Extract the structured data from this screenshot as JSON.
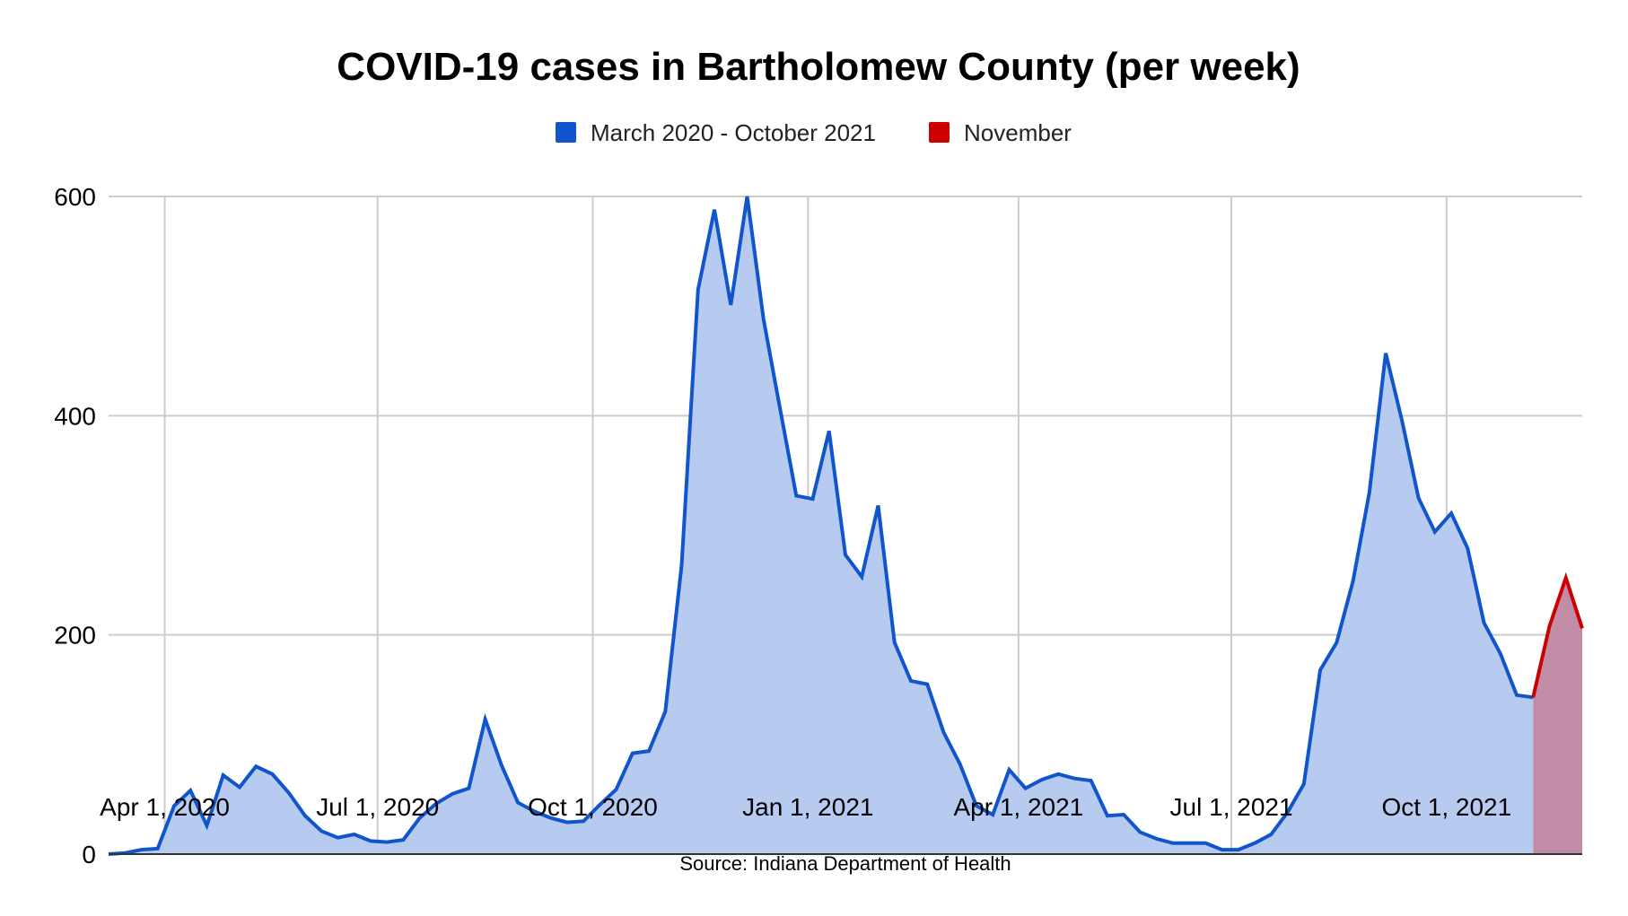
{
  "chart_data": {
    "type": "area",
    "title": "COVID-19 cases in Bartholomew County (per week)",
    "source": "Source: Indiana Department of Health",
    "xlabel": "",
    "ylabel": "",
    "ylim": [
      0,
      600
    ],
    "yticks": [
      "0",
      "200",
      "400",
      "600"
    ],
    "xlim": [
      "2020-03-08",
      "2021-11-28"
    ],
    "xticks": [
      {
        "date": "2020-04-01",
        "label": "Apr 1, 2020"
      },
      {
        "date": "2020-07-01",
        "label": "Jul 1, 2020"
      },
      {
        "date": "2020-10-01",
        "label": "Oct 1, 2020"
      },
      {
        "date": "2021-01-01",
        "label": "Jan 1, 2021"
      },
      {
        "date": "2021-04-01",
        "label": "Apr 1, 2021"
      },
      {
        "date": "2021-07-01",
        "label": "Jul 1, 2021"
      },
      {
        "date": "2021-10-01",
        "label": "Oct 1, 2021"
      }
    ],
    "grid": true,
    "legend_position": "top",
    "series": [
      {
        "name": "March 2020 - October 2021",
        "color": "#1155cc",
        "fill": "#b7cbf0",
        "x": [
          "2020-03-08",
          "2020-03-15",
          "2020-03-22",
          "2020-03-29",
          "2020-04-05",
          "2020-04-12",
          "2020-04-19",
          "2020-04-26",
          "2020-05-03",
          "2020-05-10",
          "2020-05-17",
          "2020-05-24",
          "2020-05-31",
          "2020-06-07",
          "2020-06-14",
          "2020-06-21",
          "2020-06-28",
          "2020-07-05",
          "2020-07-12",
          "2020-07-19",
          "2020-07-26",
          "2020-08-02",
          "2020-08-09",
          "2020-08-16",
          "2020-08-23",
          "2020-08-30",
          "2020-09-06",
          "2020-09-13",
          "2020-09-20",
          "2020-09-27",
          "2020-10-04",
          "2020-10-11",
          "2020-10-18",
          "2020-10-25",
          "2020-11-01",
          "2020-11-08",
          "2020-11-15",
          "2020-11-22",
          "2020-11-29",
          "2020-12-06",
          "2020-12-13",
          "2020-12-20",
          "2020-12-27",
          "2021-01-03",
          "2021-01-10",
          "2021-01-17",
          "2021-01-24",
          "2021-01-31",
          "2021-02-07",
          "2021-02-14",
          "2021-02-21",
          "2021-02-28",
          "2021-03-07",
          "2021-03-14",
          "2021-03-21",
          "2021-03-28",
          "2021-04-04",
          "2021-04-11",
          "2021-04-18",
          "2021-04-25",
          "2021-05-02",
          "2021-05-09",
          "2021-05-16",
          "2021-05-23",
          "2021-05-30",
          "2021-06-06",
          "2021-06-13",
          "2021-06-20",
          "2021-06-27",
          "2021-07-04",
          "2021-07-11",
          "2021-07-18",
          "2021-07-25",
          "2021-08-01",
          "2021-08-08",
          "2021-08-15",
          "2021-08-22",
          "2021-08-29",
          "2021-09-05",
          "2021-09-12",
          "2021-09-19",
          "2021-09-26",
          "2021-10-03",
          "2021-10-10",
          "2021-10-17",
          "2021-10-24",
          "2021-10-31",
          "2021-11-07"
        ],
        "values": [
          0,
          1,
          4,
          5,
          44,
          58,
          26,
          72,
          61,
          80,
          73,
          56,
          35,
          21,
          15,
          18,
          12,
          11,
          13,
          33,
          46,
          55,
          60,
          123,
          81,
          47,
          39,
          33,
          29,
          30,
          45,
          59,
          92,
          94,
          130,
          264,
          515,
          588,
          501,
          600,
          488,
          407,
          327,
          324,
          386,
          273,
          253,
          318,
          193,
          158,
          155,
          111,
          82,
          44,
          36,
          77,
          60,
          68,
          73,
          69,
          67,
          35,
          36,
          20,
          14,
          10,
          10,
          10,
          4,
          4,
          10,
          18,
          38,
          64,
          168,
          193,
          249,
          330,
          457,
          395,
          325,
          294,
          311,
          279,
          211,
          183,
          145,
          143
        ]
      },
      {
        "name": "November",
        "color": "#cc0000",
        "fill": "#c08ca6",
        "x": [
          "2021-11-07",
          "2021-11-14",
          "2021-11-21",
          "2021-11-28"
        ],
        "values": [
          143,
          208,
          252,
          206
        ]
      }
    ]
  }
}
